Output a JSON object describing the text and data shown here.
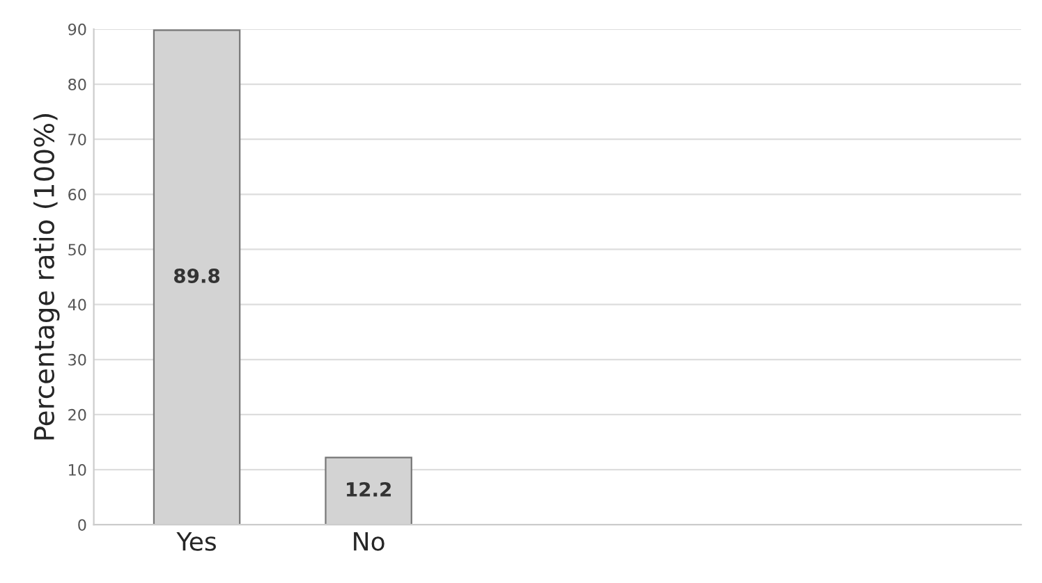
{
  "chart_data": {
    "type": "bar",
    "ylabel": "Percentage ratio (100%)",
    "categories": [
      "Yes",
      "No"
    ],
    "values": [
      89.8,
      12.2
    ],
    "color": "#d3d3d3",
    "ylim": [
      0,
      90
    ],
    "yticks": [
      0,
      10,
      20,
      30,
      40,
      50,
      60,
      70,
      80,
      90
    ],
    "grid": "y",
    "data_labels": true
  }
}
